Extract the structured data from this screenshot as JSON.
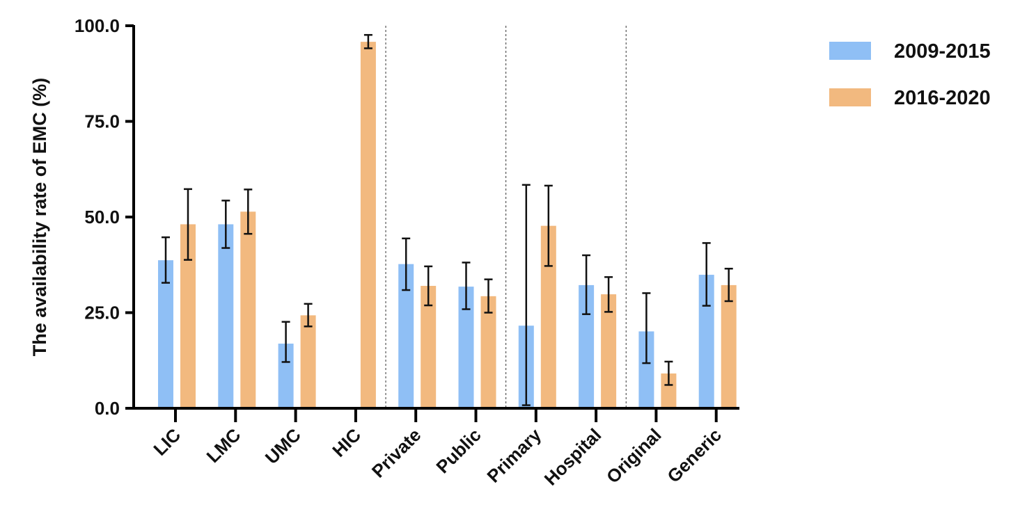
{
  "chart_data": {
    "type": "bar",
    "title": "",
    "xlabel": "",
    "ylabel": "The availability rate of EMC (%)",
    "ylim": [
      0,
      100
    ],
    "yticks": [
      "0.0",
      "25.0",
      "50.0",
      "75.0",
      "100.0"
    ],
    "categories": [
      "LIC",
      "LMC",
      "UMC",
      "HIC",
      "Private",
      "Public",
      "Primary",
      "Hospital",
      "Original",
      "Generic"
    ],
    "group_separators_after": [
      "HIC",
      "Public",
      "Hospital"
    ],
    "legend_position": "top-right",
    "series": [
      {
        "name": "2009-2015",
        "color": "#8fbff5",
        "values": [
          38.7,
          48.1,
          16.9,
          null,
          37.7,
          31.8,
          21.6,
          32.2,
          20.1,
          34.9
        ],
        "error_low": [
          32.8,
          41.9,
          12.1,
          null,
          30.9,
          25.9,
          0.8,
          24.6,
          11.8,
          26.8
        ],
        "error_high": [
          44.7,
          54.3,
          22.6,
          null,
          44.4,
          38.1,
          58.4,
          40.0,
          30.1,
          43.2
        ]
      },
      {
        "name": "2016-2020",
        "color": "#f2b97f",
        "values": [
          48.1,
          51.4,
          24.3,
          95.8,
          32.0,
          29.3,
          47.7,
          29.8,
          9.1,
          32.2
        ],
        "error_low": [
          38.8,
          45.6,
          21.4,
          94.1,
          26.9,
          25.0,
          37.2,
          25.2,
          6.1,
          28.0
        ],
        "error_high": [
          57.3,
          57.2,
          27.3,
          97.6,
          37.1,
          33.7,
          58.2,
          34.3,
          12.2,
          36.5
        ]
      }
    ]
  }
}
